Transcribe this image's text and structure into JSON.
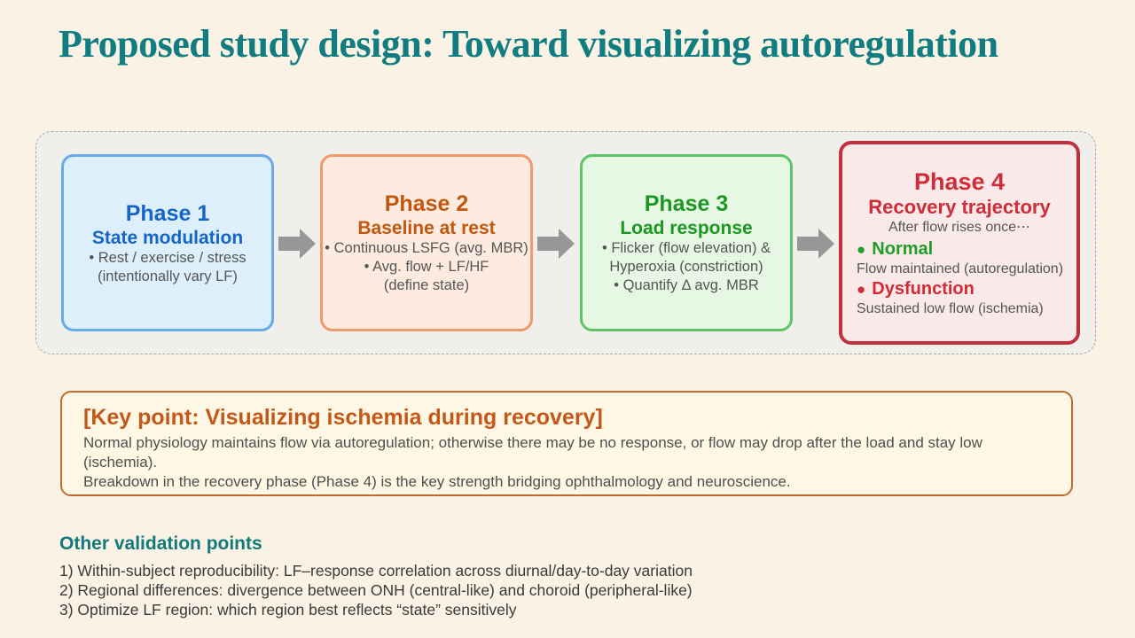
{
  "slide": {
    "title": "Proposed study design: Toward visualizing autoregulation",
    "background_color": "#FAF2E4",
    "title_color": "#127D80"
  },
  "flow": {
    "panel_background": "#F0EFEB",
    "arrow_color": "#979797",
    "phases": [
      {
        "name": "Phase 1",
        "subtitle": "State modulation",
        "lines": [
          "• Rest / exercise / stress",
          "(intentionally vary LF)"
        ],
        "accent_color": "#1565C8",
        "border_color": "#67ABE8",
        "fill_color": "#DCEFFA"
      },
      {
        "name": "Phase 2",
        "subtitle": "Baseline at rest",
        "lines": [
          "• Continuous LSFG (avg. MBR)",
          "• Avg. flow + LF/HF",
          "(define state)"
        ],
        "accent_color": "#C45710",
        "border_color": "#F0996B",
        "fill_color": "#FCEBDE"
      },
      {
        "name": "Phase 3",
        "subtitle": "Load response",
        "lines": [
          "• Flicker (flow elevation) &",
          "Hyperoxia (constriction)",
          "• Quantify Δ avg. MBR"
        ],
        "accent_color": "#1D9722",
        "border_color": "#5FC468",
        "fill_color": "#E6F7E4"
      },
      {
        "name": "Phase 4",
        "subtitle": "Recovery trajectory",
        "intro": "After flow rises once⋯",
        "outcomes": [
          {
            "bullet": "●",
            "label": "Normal",
            "desc": "Flow maintained (autoregulation)",
            "color": "#1E9E28"
          },
          {
            "bullet": "●",
            "label": "Dysfunction",
            "desc": "Sustained low flow (ischemia)",
            "color": "#D22B35"
          }
        ],
        "accent_color": "#CE2D39",
        "border_color": "#C0313E",
        "fill_color": "#FAE9E9"
      }
    ]
  },
  "key_point": {
    "heading": "[Key point: Visualizing ischemia during recovery]",
    "heading_color": "#C4581A",
    "border_color": "#C06A30",
    "fill_color": "#FDF7E3",
    "body": [
      "Normal physiology maintains flow via autoregulation; otherwise there may be no response, or flow may drop after the load and stay low (ischemia).",
      "Breakdown in the recovery phase (Phase 4) is the key strength bridging ophthalmology and neuroscience."
    ]
  },
  "other_points": {
    "heading": "Other validation points",
    "heading_color": "#14797B",
    "items": [
      "1) Within-subject reproducibility: LF–response correlation across diurnal/day-to-day variation",
      "2) Regional differences: divergence between ONH (central-like) and choroid (peripheral-like)",
      "3) Optimize LF region: which region best reflects “state” sensitively"
    ]
  }
}
